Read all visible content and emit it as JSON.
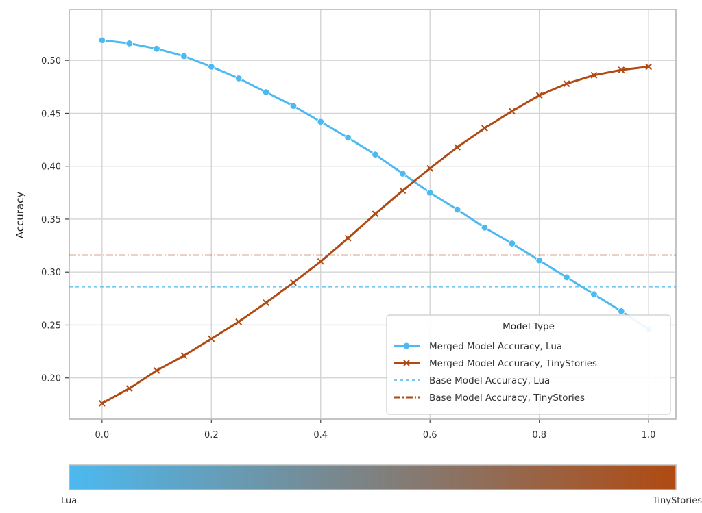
{
  "chart_data": {
    "type": "line",
    "ylabel": "Accuracy",
    "xlabel": "",
    "xlim": [
      -0.06,
      1.05
    ],
    "ylim": [
      0.161,
      0.548
    ],
    "x_ticks": [
      "0.0",
      "0.2",
      "0.4",
      "0.6",
      "0.8",
      "1.0"
    ],
    "y_ticks": [
      "0.20",
      "0.25",
      "0.30",
      "0.35",
      "0.40",
      "0.45",
      "0.50"
    ],
    "grid": true,
    "legend_position": "lower-right",
    "legend_title": "Model Type",
    "x": [
      0.0,
      0.05,
      0.1,
      0.15,
      0.2,
      0.25,
      0.3,
      0.35,
      0.4,
      0.45,
      0.5,
      0.55,
      0.6,
      0.65,
      0.7,
      0.75,
      0.8,
      0.85,
      0.9,
      0.95,
      1.0
    ],
    "series": [
      {
        "name": "Merged Model Accuracy, Lua",
        "color": "#4cb9f0",
        "marker": "circle",
        "values": [
          0.519,
          0.516,
          0.511,
          0.504,
          0.494,
          0.483,
          0.47,
          0.457,
          0.442,
          0.427,
          0.411,
          0.393,
          0.375,
          0.359,
          0.342,
          0.327,
          0.311,
          0.295,
          0.279,
          0.263,
          0.246
        ]
      },
      {
        "name": "Merged Model Accuracy, TinyStories",
        "color": "#b04a12",
        "marker": "x",
        "values": [
          0.176,
          0.19,
          0.207,
          0.221,
          0.237,
          0.253,
          0.271,
          0.29,
          0.31,
          0.332,
          0.355,
          0.377,
          0.398,
          0.418,
          0.436,
          0.452,
          0.467,
          0.478,
          0.486,
          0.491,
          0.494
        ]
      }
    ],
    "reference_lines": [
      {
        "name": "Base Model Accuracy, Lua",
        "value": 0.286,
        "color": "#4cb9f0",
        "style": "dashed"
      },
      {
        "name": "Base Model Accuracy, TinyStories",
        "value": 0.316,
        "color": "#b04a12",
        "style": "dashdot"
      }
    ],
    "colorbar": {
      "start_color": "#4cb9f0",
      "end_color": "#b04a12",
      "left_label": "Lua",
      "right_label": "TinyStories"
    }
  }
}
